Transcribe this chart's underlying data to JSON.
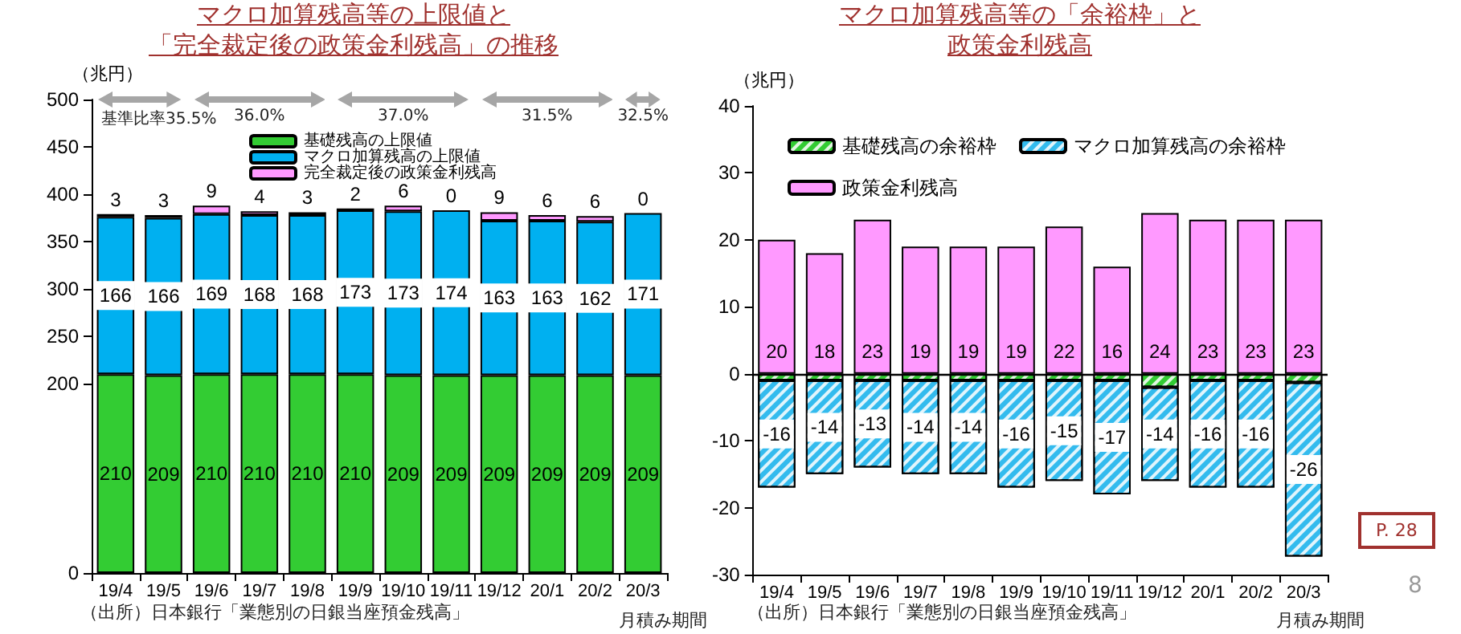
{
  "chart_data": [
    {
      "type": "bar",
      "title": "マクロ加算残高等の上限値と",
      "subtitle": "「完全裁定後の政策金利残高」の推移",
      "ylabel": "（兆円）",
      "stacked": true,
      "data_labels": true,
      "grid": false,
      "legend": "top",
      "categories": [
        "19/4",
        "19/5",
        "19/6",
        "19/7",
        "19/8",
        "19/9",
        "19/10",
        "19/11",
        "19/12",
        "20/1",
        "20/2",
        "20/3"
      ],
      "ylim": [
        0,
        500
      ],
      "yticks": [
        0,
        200,
        250,
        300,
        350,
        400,
        450,
        500
      ],
      "series": [
        {
          "name": "基礎残高の上限値",
          "color": "#33cc33",
          "values": [
            210,
            209,
            210,
            210,
            210,
            210,
            209,
            209,
            209,
            209,
            209,
            209
          ]
        },
        {
          "name": "マクロ加算残高の上限値",
          "color": "#00b0f0",
          "values": [
            166,
            166,
            169,
            168,
            168,
            173,
            173,
            174,
            163,
            163,
            162,
            171
          ]
        },
        {
          "name": "完全裁定後の政策金利残高",
          "color": "#ff99ff",
          "values": [
            3,
            3,
            9,
            4,
            3,
            2,
            6,
            0,
            9,
            6,
            6,
            0
          ]
        }
      ],
      "annotations": [
        "基準比率35.5%",
        "36.0%",
        "37.0%",
        "31.5%",
        "32.5%",
        "（出所）日本銀行「業態別の日銀当座預金残高」",
        "月積み期間"
      ]
    },
    {
      "type": "bar",
      "title": "マクロ加算残高等の「余裕枠」と",
      "subtitle": "政策金利残高",
      "ylabel": "（兆円）",
      "stacked": true,
      "grid": false,
      "legend": "top left",
      "categories": [
        "19/4",
        "19/5",
        "19/6",
        "19/7",
        "19/8",
        "19/9",
        "19/10",
        "19/11",
        "19/12",
        "20/1",
        "20/2",
        "20/3"
      ],
      "ylim": [
        -30,
        40
      ],
      "yticks": [
        -30,
        -20,
        -10,
        0,
        10,
        20,
        30,
        40
      ],
      "ref_lines": [
        {
          "axis": "y",
          "value": 0,
          "color": "#000000"
        }
      ],
      "series": [
        {
          "name": "基礎残高の余裕枠",
          "color": "#33cc33",
          "values": [
            -1,
            -1,
            -1,
            -1,
            -1,
            -1,
            -1,
            -1,
            -2,
            -1,
            -1,
            -1.3
          ]
        },
        {
          "name": "マクロ加算残高の余裕枠",
          "color": "#33bbee",
          "values": [
            -16,
            -14,
            -13,
            -14,
            -14,
            -16,
            -15,
            -17,
            -14,
            -16,
            -16,
            -26
          ],
          "value_labels": [
            "-16",
            "-14",
            "-13",
            "-14",
            "-14",
            "-16",
            "-15",
            "-17",
            "-14",
            "-16",
            "-16",
            "-26"
          ]
        },
        {
          "name": "政策金利残高",
          "color": "#ff99ff",
          "values": [
            20,
            18,
            23,
            19,
            19,
            19,
            22,
            16,
            24,
            23,
            23,
            23
          ],
          "value_labels": [
            "20",
            "18",
            "23",
            "19",
            "19",
            "19",
            "22",
            "16",
            "24",
            "23",
            "23",
            "23"
          ]
        }
      ],
      "annotations": [
        "（出所）日本銀行「業態別の日銀当座預金残高」",
        "月積み期間",
        "P. 28",
        "8"
      ]
    }
  ]
}
